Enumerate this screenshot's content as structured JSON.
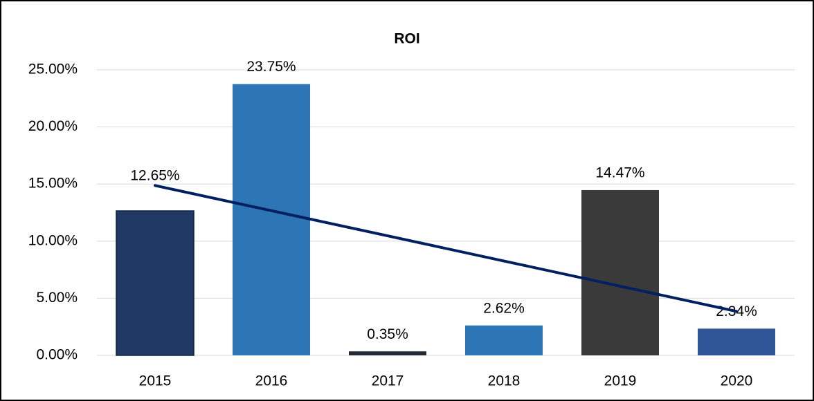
{
  "chart_data": {
    "type": "bar",
    "title": "ROI",
    "categories": [
      "2015",
      "2016",
      "2017",
      "2018",
      "2019",
      "2020"
    ],
    "values": [
      12.65,
      23.75,
      0.35,
      2.62,
      14.47,
      2.34
    ],
    "value_labels": [
      "12.65%",
      "23.75%",
      "0.35%",
      "2.62%",
      "14.47%",
      "2.34%"
    ],
    "colors": [
      "#203864",
      "#2e75b6",
      "#222a35",
      "#2e75b6",
      "#3a3a3a",
      "#2f5597"
    ],
    "trendline": "linear",
    "trendline_color": "#002060",
    "ylim": [
      0,
      25
    ],
    "yticks": [
      {
        "value": 0,
        "label": "0.00%"
      },
      {
        "value": 5,
        "label": "5.00%"
      },
      {
        "value": 10,
        "label": "10.00%"
      },
      {
        "value": 15,
        "label": "15.00%"
      },
      {
        "value": 20,
        "label": "20.00%"
      },
      {
        "value": 25,
        "label": "25.00%"
      }
    ],
    "grid": true
  }
}
